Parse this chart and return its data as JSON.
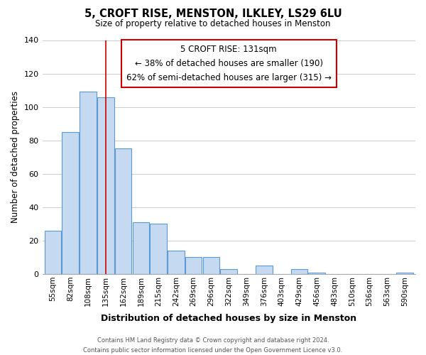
{
  "title": "5, CROFT RISE, MENSTON, ILKLEY, LS29 6LU",
  "subtitle": "Size of property relative to detached houses in Menston",
  "xlabel": "Distribution of detached houses by size in Menston",
  "ylabel": "Number of detached properties",
  "footer_line1": "Contains HM Land Registry data © Crown copyright and database right 2024.",
  "footer_line2": "Contains public sector information licensed under the Open Government Licence v3.0.",
  "bar_labels": [
    "55sqm",
    "82sqm",
    "108sqm",
    "135sqm",
    "162sqm",
    "189sqm",
    "215sqm",
    "242sqm",
    "269sqm",
    "296sqm",
    "322sqm",
    "349sqm",
    "376sqm",
    "403sqm",
    "429sqm",
    "456sqm",
    "483sqm",
    "510sqm",
    "536sqm",
    "563sqm",
    "590sqm"
  ],
  "bar_values": [
    26,
    85,
    109,
    106,
    75,
    31,
    30,
    14,
    10,
    10,
    3,
    0,
    5,
    0,
    3,
    1,
    0,
    0,
    0,
    0,
    1
  ],
  "bar_color": "#c5d9f0",
  "bar_edge_color": "#5b9bd5",
  "vline_x": 3,
  "vline_color": "#cc0000",
  "annotation_title": "5 CROFT RISE: 131sqm",
  "annotation_line1": "← 38% of detached houses are smaller (190)",
  "annotation_line2": "62% of semi-detached houses are larger (315) →",
  "annotation_box_color": "#ffffff",
  "annotation_box_edge": "#cc0000",
  "ylim": [
    0,
    140
  ],
  "yticks": [
    0,
    20,
    40,
    60,
    80,
    100,
    120,
    140
  ],
  "background_color": "#ffffff",
  "grid_color": "#cccccc"
}
